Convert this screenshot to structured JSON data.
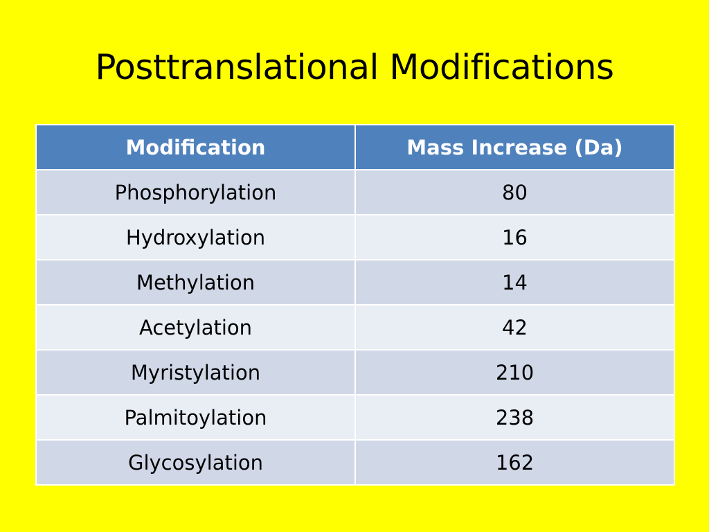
{
  "slide": {
    "title": "Posttranslational Modifications"
  },
  "table": {
    "headers": [
      "Modification",
      "Mass Increase (Da)"
    ],
    "rows": [
      {
        "modification": "Phosphorylation",
        "mass": "80"
      },
      {
        "modification": "Hydroxylation",
        "mass": "16"
      },
      {
        "modification": "Methylation",
        "mass": "14"
      },
      {
        "modification": "Acetylation",
        "mass": "42"
      },
      {
        "modification": "Myristylation",
        "mass": "210"
      },
      {
        "modification": "Palmitoylation",
        "mass": "238"
      },
      {
        "modification": "Glycosylation",
        "mass": "162"
      }
    ]
  },
  "colors": {
    "background": "#FFFF00",
    "header": "#4F81BD",
    "row_odd": "#D0D8E8",
    "row_even": "#E9EDF4"
  }
}
